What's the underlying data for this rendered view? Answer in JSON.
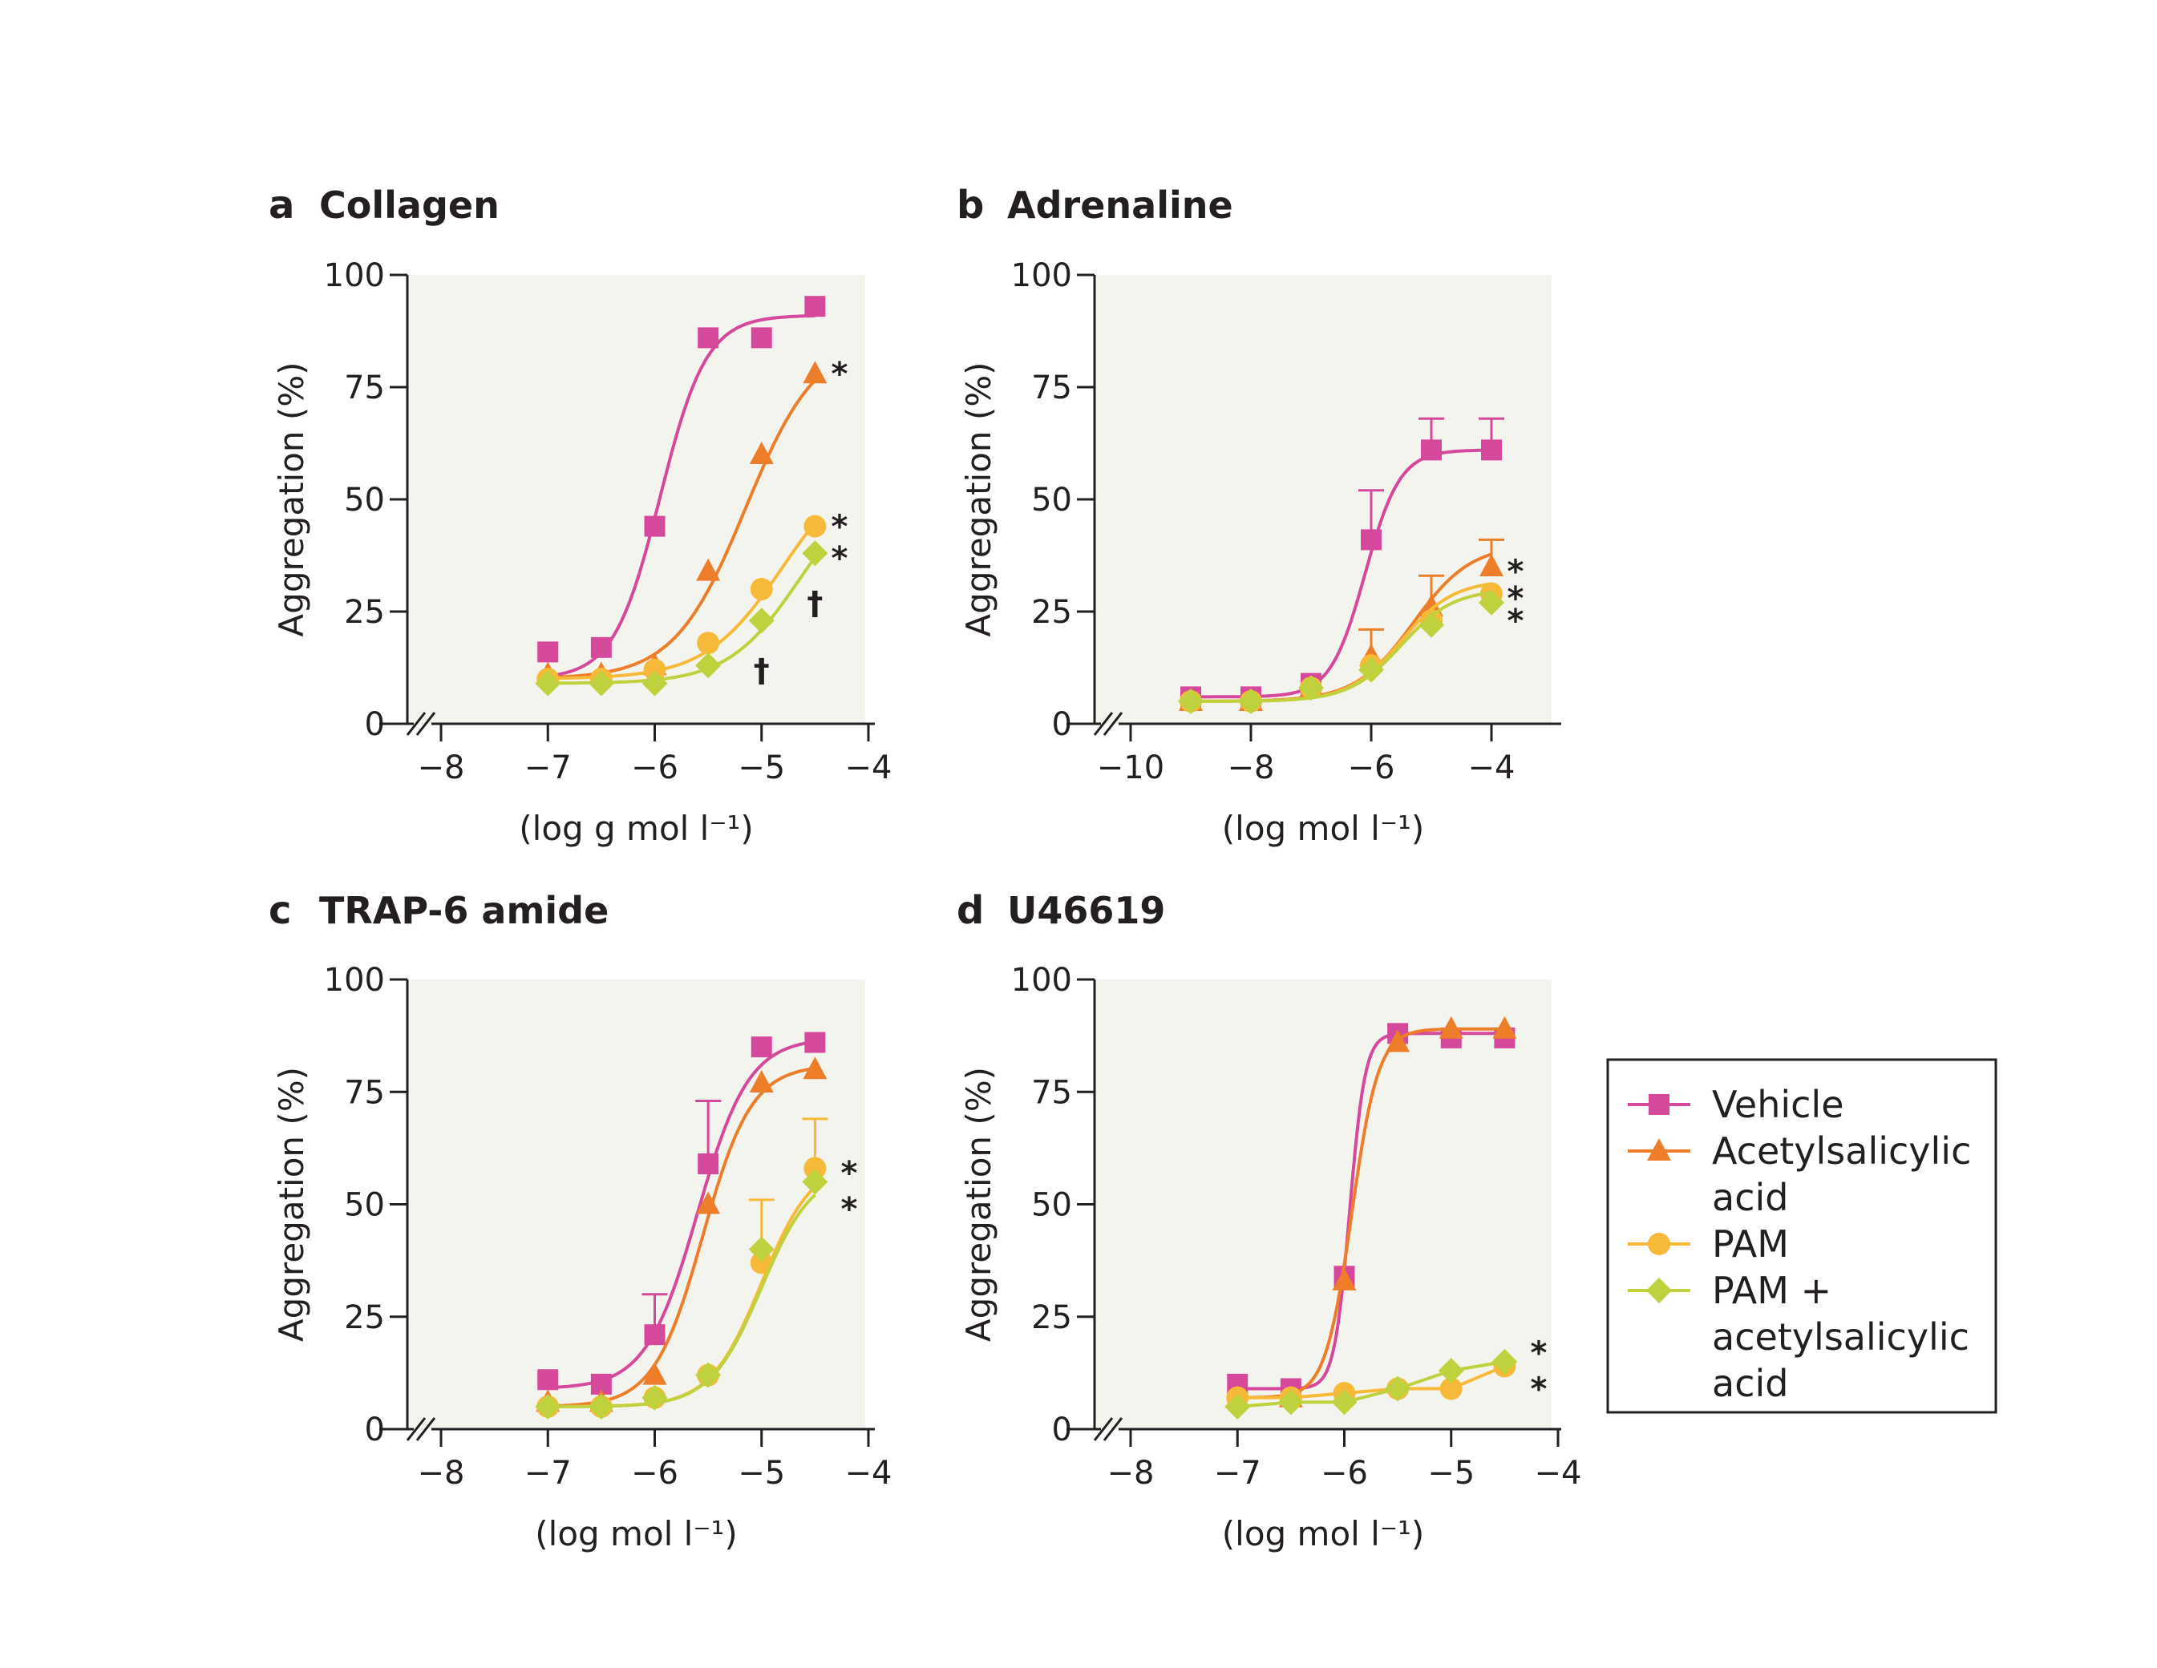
{
  "colors": {
    "vehicle": "#d6489c",
    "asa": "#ee7d2a",
    "pam": "#f7b938",
    "pam_asa": "#bfd13c",
    "plot_bg": "#f4f4ef",
    "axis": "#231f20"
  },
  "legend": {
    "items": [
      {
        "label_lines": [
          "Vehicle"
        ],
        "color": "#d6489c",
        "marker": "square"
      },
      {
        "label_lines": [
          "Acetylsalicylic",
          "acid"
        ],
        "color": "#ee7d2a",
        "marker": "triangle"
      },
      {
        "label_lines": [
          "PAM"
        ],
        "color": "#f7b938",
        "marker": "circle"
      },
      {
        "label_lines": [
          "PAM +",
          "acetylsalicylic",
          "acid"
        ],
        "color": "#bfd13c",
        "marker": "diamond"
      }
    ]
  },
  "chart_data": [
    {
      "panel": "a",
      "title": "Collagen",
      "type": "line",
      "xlabel": "(log g mol l⁻¹)",
      "ylabel": "Aggregation (%)",
      "xlim": [
        -8,
        -4
      ],
      "ylim": [
        0,
        100
      ],
      "xticks": [
        -8,
        -7,
        -6,
        -5,
        -4
      ],
      "xtick_labels": [
        "−8",
        "−7",
        "−6",
        "−5",
        "−4"
      ],
      "yticks": [
        0,
        25,
        50,
        75,
        100
      ],
      "axis_break": true,
      "series": [
        {
          "key": "vehicle",
          "marker": "square",
          "points": [
            [
              -7,
              16
            ],
            [
              -6.5,
              17
            ],
            [
              -6,
              44
            ],
            [
              -5.5,
              86
            ],
            [
              -5,
              86
            ],
            [
              -4.5,
              93
            ]
          ],
          "curve": {
            "bottom": 10,
            "top": 91,
            "ec50": -5.95,
            "hill": 2.0
          }
        },
        {
          "key": "asa",
          "marker": "triangle",
          "points": [
            [
              -7,
              11
            ],
            [
              -6.5,
              11
            ],
            [
              -6,
              13
            ],
            [
              -5.5,
              34
            ],
            [
              -5,
              60
            ],
            [
              -4.5,
              78
            ]
          ],
          "curve": {
            "bottom": 10,
            "top": 86,
            "ec50": -5.15,
            "hill": 1.3
          }
        },
        {
          "key": "pam",
          "marker": "circle",
          "points": [
            [
              -7,
              10
            ],
            [
              -6.5,
              10
            ],
            [
              -6,
              12
            ],
            [
              -5.5,
              18
            ],
            [
              -5,
              30
            ],
            [
              -4.5,
              44
            ]
          ],
          "curve": {
            "bottom": 10,
            "top": 60,
            "ec50": -4.8,
            "hill": 1.2
          }
        },
        {
          "key": "pam_asa",
          "marker": "diamond",
          "points": [
            [
              -7,
              9
            ],
            [
              -6.5,
              9
            ],
            [
              -6,
              9
            ],
            [
              -5.5,
              13
            ],
            [
              -5,
              23
            ],
            [
              -4.5,
              38
            ]
          ],
          "curve": {
            "bottom": 9,
            "top": 55,
            "ec50": -4.65,
            "hill": 1.3
          }
        }
      ],
      "annotations": [
        {
          "text": "*",
          "x": -4.27,
          "y": 78
        },
        {
          "text": "*",
          "x": -4.27,
          "y": 44
        },
        {
          "text": "*",
          "x": -4.27,
          "y": 37
        },
        {
          "text": "†",
          "x": -4.5,
          "y": 27
        },
        {
          "text": "†",
          "x": -5,
          "y": 12
        }
      ]
    },
    {
      "panel": "b",
      "title": "Adrenaline",
      "type": "line",
      "xlabel": "(log mol l⁻¹)",
      "ylabel": "Aggregation (%)",
      "xlim": [
        -10,
        -3
      ],
      "ylim": [
        0,
        100
      ],
      "xticks": [
        -10,
        -8,
        -6,
        -4
      ],
      "xtick_labels": [
        "−10",
        "−8",
        "−6",
        "−4"
      ],
      "yticks": [
        0,
        25,
        50,
        75,
        100
      ],
      "axis_break": true,
      "series": [
        {
          "key": "vehicle",
          "marker": "square",
          "points": [
            [
              -9,
              6
            ],
            [
              -8,
              6
            ],
            [
              -7,
              9
            ],
            [
              -6,
              41
            ],
            [
              -5,
              61
            ],
            [
              -4,
              61
            ]
          ],
          "errors": [
            0,
            0,
            0,
            11,
            7,
            7
          ],
          "curve": {
            "bottom": 6,
            "top": 61,
            "ec50": -6.1,
            "hill": 1.5
          }
        },
        {
          "key": "asa",
          "marker": "triangle",
          "points": [
            [
              -9,
              5
            ],
            [
              -8,
              5
            ],
            [
              -7,
              8
            ],
            [
              -6,
              15
            ],
            [
              -5,
              26
            ],
            [
              -4,
              35
            ]
          ],
          "errors": [
            0,
            0,
            0,
            6,
            7,
            6
          ],
          "curve": {
            "bottom": 5,
            "top": 40,
            "ec50": -5.3,
            "hill": 0.9
          }
        },
        {
          "key": "pam",
          "marker": "circle",
          "points": [
            [
              -9,
              5
            ],
            [
              -8,
              5
            ],
            [
              -7,
              8
            ],
            [
              -6,
              13
            ],
            [
              -5,
              23
            ],
            [
              -4,
              29
            ]
          ],
          "curve": {
            "bottom": 5,
            "top": 32,
            "ec50": -5.5,
            "hill": 1.0
          }
        },
        {
          "key": "pam_asa",
          "marker": "diamond",
          "points": [
            [
              -9,
              5
            ],
            [
              -8,
              5
            ],
            [
              -7,
              8
            ],
            [
              -6,
              12
            ],
            [
              -5,
              22
            ],
            [
              -4,
              27
            ]
          ],
          "curve": {
            "bottom": 5,
            "top": 30,
            "ec50": -5.5,
            "hill": 1.0
          }
        }
      ],
      "annotations": [
        {
          "text": "*",
          "x": -3.6,
          "y": 34
        },
        {
          "text": "*",
          "x": -3.6,
          "y": 28
        },
        {
          "text": "*",
          "x": -3.6,
          "y": 23
        }
      ]
    },
    {
      "panel": "c",
      "title": "TRAP-6 amide",
      "type": "line",
      "xlabel": "(log mol l⁻¹)",
      "ylabel": "Aggregation (%)",
      "xlim": [
        -8,
        -4
      ],
      "ylim": [
        0,
        100
      ],
      "xticks": [
        -8,
        -7,
        -6,
        -5,
        -4
      ],
      "xtick_labels": [
        "−8",
        "−7",
        "−6",
        "−5",
        "−4"
      ],
      "yticks": [
        0,
        25,
        50,
        75,
        100
      ],
      "axis_break": true,
      "series": [
        {
          "key": "vehicle",
          "marker": "square",
          "points": [
            [
              -7,
              11
            ],
            [
              -6.5,
              10
            ],
            [
              -6,
              21
            ],
            [
              -5.5,
              59
            ],
            [
              -5,
              85
            ],
            [
              -4.5,
              86
            ]
          ],
          "errors": [
            0,
            0,
            9,
            14,
            0,
            0
          ],
          "curve": {
            "bottom": 9,
            "top": 87,
            "ec50": -5.6,
            "hill": 1.8
          }
        },
        {
          "key": "asa",
          "marker": "triangle",
          "points": [
            [
              -7,
              6
            ],
            [
              -6.5,
              6
            ],
            [
              -6,
              12
            ],
            [
              -5.5,
              50
            ],
            [
              -5,
              77
            ],
            [
              -4.5,
              80
            ]
          ],
          "curve": {
            "bottom": 5,
            "top": 81,
            "ec50": -5.55,
            "hill": 1.9
          }
        },
        {
          "key": "pam",
          "marker": "circle",
          "points": [
            [
              -7,
              5
            ],
            [
              -6.5,
              5
            ],
            [
              -6,
              7
            ],
            [
              -5.5,
              12
            ],
            [
              -5,
              37
            ],
            [
              -4.5,
              58
            ]
          ],
          "errors": [
            0,
            0,
            0,
            0,
            14,
            11
          ],
          "curve": {
            "bottom": 5,
            "top": 60,
            "ec50": -5.0,
            "hill": 1.8
          }
        },
        {
          "key": "pam_asa",
          "marker": "diamond",
          "points": [
            [
              -7,
              5
            ],
            [
              -6.5,
              5
            ],
            [
              -6,
              7
            ],
            [
              -5.5,
              12
            ],
            [
              -5,
              40
            ],
            [
              -4.5,
              55
            ]
          ],
          "curve": {
            "bottom": 5,
            "top": 58,
            "ec50": -5.0,
            "hill": 1.8
          }
        }
      ],
      "annotations": [
        {
          "text": "*",
          "x": -4.18,
          "y": 57
        },
        {
          "text": "*",
          "x": -4.18,
          "y": 49
        }
      ]
    },
    {
      "panel": "d",
      "title": "U46619",
      "type": "line",
      "xlabel": "(log mol l⁻¹)",
      "ylabel": "Aggregation (%)",
      "xlim": [
        -8,
        -4
      ],
      "ylim": [
        0,
        100
      ],
      "xticks": [
        -8,
        -7,
        -6,
        -5,
        -4
      ],
      "xtick_labels": [
        "−8",
        "−7",
        "−6",
        "−5",
        "−4"
      ],
      "yticks": [
        0,
        25,
        50,
        75,
        100
      ],
      "axis_break": true,
      "series": [
        {
          "key": "vehicle",
          "marker": "square",
          "points": [
            [
              -7,
              10
            ],
            [
              -6.5,
              9
            ],
            [
              -6,
              34
            ],
            [
              -5.5,
              88
            ],
            [
              -5,
              87
            ],
            [
              -4.5,
              87
            ]
          ],
          "curve": {
            "bottom": 9,
            "top": 88,
            "ec50": -5.95,
            "hill": 6.0
          }
        },
        {
          "key": "asa",
          "marker": "triangle",
          "points": [
            [
              -7,
              7
            ],
            [
              -6.5,
              7
            ],
            [
              -6,
              33
            ],
            [
              -5.5,
              86
            ],
            [
              -5,
              89
            ],
            [
              -4.5,
              89
            ]
          ],
          "curve": {
            "bottom": 7,
            "top": 89,
            "ec50": -5.93,
            "hill": 3.5
          }
        },
        {
          "key": "pam",
          "marker": "circle",
          "points": [
            [
              -7,
              7
            ],
            [
              -6.5,
              7
            ],
            [
              -6,
              8
            ],
            [
              -5.5,
              9
            ],
            [
              -5,
              9
            ],
            [
              -4.5,
              14
            ]
          ]
        },
        {
          "key": "pam_asa",
          "marker": "diamond",
          "points": [
            [
              -7,
              5
            ],
            [
              -6.5,
              6
            ],
            [
              -6,
              6
            ],
            [
              -5.5,
              9
            ],
            [
              -5,
              13
            ],
            [
              -4.5,
              15
            ]
          ]
        }
      ],
      "annotations": [
        {
          "text": "*",
          "x": -4.18,
          "y": 17
        },
        {
          "text": "*",
          "x": -4.18,
          "y": 9
        }
      ]
    }
  ]
}
